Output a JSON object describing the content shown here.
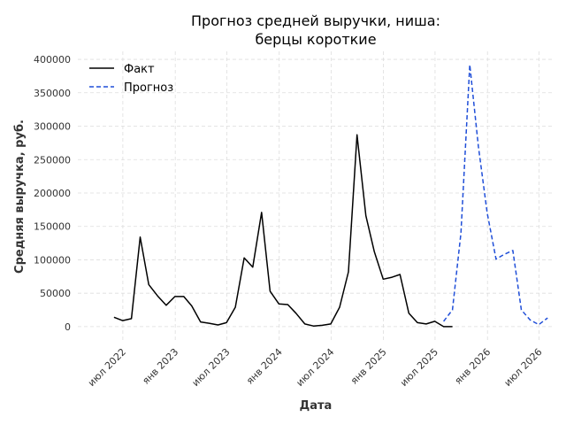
{
  "chart_data": {
    "type": "line",
    "title_line1": "Прогноз средней выручки, ниша:",
    "title_line2": "берцы короткие",
    "xlabel": "Дата",
    "ylabel": "Средняя выручка, руб.",
    "ylim": [
      -20000,
      412000
    ],
    "yticks": [
      0,
      50000,
      100000,
      150000,
      200000,
      250000,
      300000,
      350000,
      400000
    ],
    "ytick_labels": [
      "0",
      "50000",
      "100000",
      "150000",
      "200000",
      "250000",
      "300000",
      "350000",
      "400000"
    ],
    "xlim": [
      "2022-01-24",
      "2026-08-15"
    ],
    "xticks": [
      "2022-07-01",
      "2023-01-01",
      "2023-07-01",
      "2024-01-01",
      "2024-07-01",
      "2025-01-01",
      "2025-07-01",
      "2026-01-01",
      "2026-07-01"
    ],
    "xtick_labels": [
      "июл 2022",
      "янв 2023",
      "июл 2023",
      "янв 2024",
      "июл 2024",
      "янв 2025",
      "июл 2025",
      "янв 2026",
      "июл 2026"
    ],
    "grid": true,
    "legend_position": "top-left",
    "series": [
      {
        "name": "Факт",
        "color": "#000000",
        "style": "solid",
        "x": [
          "2022-05-31",
          "2022-06-30",
          "2022-07-31",
          "2022-08-31",
          "2022-09-30",
          "2022-10-31",
          "2022-11-30",
          "2022-12-31",
          "2023-01-31",
          "2023-02-28",
          "2023-03-31",
          "2023-04-30",
          "2023-05-31",
          "2023-06-30",
          "2023-07-31",
          "2023-08-31",
          "2023-09-30",
          "2023-10-31",
          "2023-11-30",
          "2023-12-31",
          "2024-01-31",
          "2024-02-29",
          "2024-03-31",
          "2024-04-30",
          "2024-05-31",
          "2024-06-30",
          "2024-07-31",
          "2024-08-31",
          "2024-09-30",
          "2024-10-31",
          "2024-11-30",
          "2024-12-31",
          "2025-01-31",
          "2025-02-28",
          "2025-03-31",
          "2025-04-30",
          "2025-05-31",
          "2025-06-30",
          "2025-07-31",
          "2025-08-31"
        ],
        "values": [
          14000,
          9000,
          12000,
          134000,
          63000,
          46000,
          32000,
          45000,
          45000,
          31000,
          7000,
          5000,
          2500,
          6000,
          29000,
          103000,
          89000,
          171000,
          53000,
          34000,
          33000,
          20000,
          4000,
          1000,
          2000,
          4000,
          29000,
          82000,
          287000,
          166000,
          112000,
          71000,
          74000,
          78000,
          20000,
          6000,
          4000,
          8000,
          0,
          0
        ]
      },
      {
        "name": "Прогноз",
        "color": "#1f4ed8",
        "style": "dashed",
        "x": [
          "2025-07-31",
          "2025-08-31",
          "2025-09-30",
          "2025-10-31",
          "2025-11-30",
          "2025-12-31",
          "2026-01-31",
          "2026-02-28",
          "2026-03-31",
          "2026-04-30",
          "2026-05-31",
          "2026-06-30",
          "2026-07-31"
        ],
        "values": [
          8000,
          25000,
          140000,
          392000,
          270000,
          170000,
          101000,
          108000,
          114000,
          25000,
          10000,
          3000,
          13000
        ]
      }
    ]
  }
}
